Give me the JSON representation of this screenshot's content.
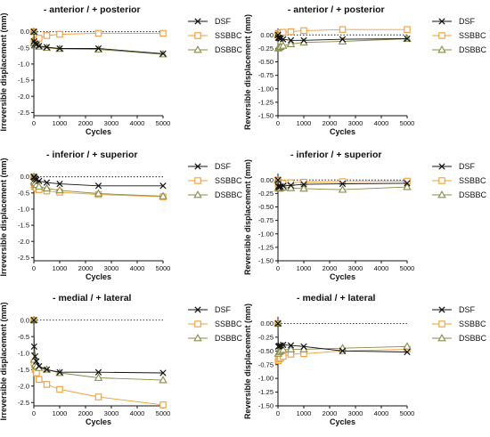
{
  "chart_data": [
    {
      "type": "line",
      "title": "- anterior / + posterior",
      "xlabel": "Cycles",
      "ylabel": "Irreversible displacement (mm)",
      "xlim": [
        0,
        5000
      ],
      "ylim": [
        -2.6,
        0.1
      ],
      "xticks": [
        "0",
        "1000",
        "2000",
        "3000",
        "4000",
        "5000"
      ],
      "yticks": [
        "0.0",
        "-0.5",
        "-1.0",
        "-1.5",
        "-2.0",
        "-2.5"
      ],
      "reference_line": 0,
      "x": [
        0,
        10,
        50,
        100,
        200,
        500,
        1000,
        2500,
        5000
      ],
      "series": [
        {
          "name": "DSF",
          "marker": "x",
          "values": [
            0,
            -0.3,
            -0.37,
            -0.4,
            -0.44,
            -0.48,
            -0.52,
            -0.52,
            -0.68
          ]
        },
        {
          "name": "SSBBC",
          "marker": "square",
          "values": [
            0,
            -0.3,
            -0.28,
            -0.26,
            -0.2,
            -0.12,
            -0.08,
            -0.05,
            -0.05
          ]
        },
        {
          "name": "DSBBC",
          "marker": "triangle",
          "values": [
            0,
            -0.35,
            -0.4,
            -0.42,
            -0.46,
            -0.5,
            -0.53,
            -0.55,
            -0.7
          ]
        }
      ],
      "legend": "right"
    },
    {
      "type": "line",
      "title": "- anterior / + posterior",
      "xlabel": "Cycles",
      "ylabel": "Reversible displacement (mm)",
      "xlim": [
        0,
        5000
      ],
      "ylim": [
        -1.5,
        0.12
      ],
      "xticks": [
        "0",
        "1000",
        "2000",
        "3000",
        "4000",
        "5000"
      ],
      "yticks": [
        "0.00",
        "-0.25",
        "-0.50",
        "-0.75",
        "-1.00",
        "-1.25",
        "-1.50"
      ],
      "reference_line": 0,
      "x": [
        0,
        10,
        50,
        100,
        200,
        500,
        1000,
        2500,
        5000
      ],
      "series": [
        {
          "name": "DSF",
          "marker": "x",
          "values": [
            0,
            -0.05,
            -0.06,
            -0.07,
            -0.08,
            -0.1,
            -0.1,
            -0.08,
            -0.07
          ]
        },
        {
          "name": "SSBBC",
          "marker": "square",
          "values": [
            0,
            0.02,
            0.03,
            0.04,
            0.05,
            0.06,
            0.08,
            0.1,
            0.1
          ]
        },
        {
          "name": "DSBBC",
          "marker": "triangle",
          "values": [
            0,
            -0.25,
            -0.23,
            -0.22,
            -0.2,
            -0.17,
            -0.14,
            -0.12,
            -0.07
          ]
        }
      ],
      "legend": "right"
    },
    {
      "type": "line",
      "title": "- inferior / + superior",
      "xlabel": "Cycles",
      "ylabel": "Irreversible displacement (mm)",
      "xlim": [
        0,
        5000
      ],
      "ylim": [
        -2.6,
        0.1
      ],
      "xticks": [
        "0",
        "1000",
        "2000",
        "3000",
        "4000",
        "5000"
      ],
      "yticks": [
        "0.0",
        "-0.5",
        "-1.0",
        "-1.5",
        "-2.0",
        "-2.5"
      ],
      "reference_line": 0,
      "x": [
        0,
        10,
        50,
        100,
        200,
        500,
        1000,
        2500,
        5000
      ],
      "series": [
        {
          "name": "DSF",
          "marker": "x",
          "values": [
            0,
            -0.02,
            -0.06,
            -0.09,
            -0.13,
            -0.18,
            -0.22,
            -0.28,
            -0.28
          ]
        },
        {
          "name": "SSBBC",
          "marker": "square",
          "values": [
            0,
            -0.28,
            -0.32,
            -0.35,
            -0.4,
            -0.44,
            -0.48,
            -0.55,
            -0.62
          ]
        },
        {
          "name": "DSBBC",
          "marker": "triangle",
          "values": [
            0,
            -0.15,
            -0.2,
            -0.25,
            -0.3,
            -0.36,
            -0.42,
            -0.52,
            -0.6
          ]
        }
      ],
      "legend": "right"
    },
    {
      "type": "line",
      "title": "- inferior / + superior",
      "xlabel": "Cycles",
      "ylabel": "Reversible displacement (mm)",
      "xlim": [
        0,
        5000
      ],
      "ylim": [
        -1.5,
        0.12
      ],
      "xticks": [
        "0",
        "1000",
        "2000",
        "3000",
        "4000",
        "5000"
      ],
      "yticks": [
        "0.00",
        "-0.25",
        "-0.50",
        "-0.75",
        "-1.00",
        "-1.25",
        "-1.50"
      ],
      "reference_line": 0,
      "x": [
        0,
        10,
        50,
        100,
        200,
        500,
        1000,
        2500,
        5000
      ],
      "series": [
        {
          "name": "DSF",
          "marker": "x",
          "values": [
            0,
            -0.12,
            -0.13,
            -0.12,
            -0.11,
            -0.1,
            -0.08,
            -0.07,
            -0.06
          ]
        },
        {
          "name": "SSBBC",
          "marker": "square",
          "values": [
            0,
            -0.08,
            -0.08,
            -0.07,
            -0.06,
            -0.05,
            -0.04,
            -0.03,
            -0.02
          ]
        },
        {
          "name": "DSBBC",
          "marker": "triangle",
          "values": [
            0,
            -0.15,
            -0.16,
            -0.15,
            -0.14,
            -0.15,
            -0.16,
            -0.18,
            -0.13
          ]
        }
      ],
      "legend": "right"
    },
    {
      "type": "line",
      "title": "- medial / + lateral",
      "xlabel": "Cycles",
      "ylabel": "Irreversible displacement (mm)",
      "xlim": [
        0,
        5000
      ],
      "ylim": [
        -2.6,
        0.1
      ],
      "xticks": [
        "0",
        "1000",
        "2000",
        "3000",
        "4000",
        "5000"
      ],
      "yticks": [
        "0.0",
        "-0.5",
        "-1.0",
        "-1.5",
        "-2.0",
        "-2.5"
      ],
      "reference_line": 0,
      "x": [
        0,
        10,
        50,
        100,
        200,
        500,
        1000,
        2500,
        5000
      ],
      "series": [
        {
          "name": "DSF",
          "marker": "x",
          "values": [
            0,
            -0.8,
            -1.1,
            -1.25,
            -1.4,
            -1.5,
            -1.58,
            -1.58,
            -1.6
          ]
        },
        {
          "name": "SSBBC",
          "marker": "square",
          "values": [
            0,
            -1.3,
            -1.5,
            -1.6,
            -1.8,
            -1.95,
            -2.1,
            -2.33,
            -2.57
          ]
        },
        {
          "name": "DSBBC",
          "marker": "triangle",
          "values": [
            0,
            -1.2,
            -1.35,
            -1.4,
            -1.45,
            -1.5,
            -1.6,
            -1.75,
            -1.82
          ]
        }
      ],
      "legend": "right"
    },
    {
      "type": "line",
      "title": "- medial / + lateral",
      "xlabel": "Cycles",
      "ylabel": "Reversible displacement (mm)",
      "xlim": [
        0,
        5000
      ],
      "ylim": [
        -1.5,
        0.12
      ],
      "xticks": [
        "0",
        "1000",
        "2000",
        "3000",
        "4000",
        "5000"
      ],
      "yticks": [
        "0.00",
        "-0.25",
        "-0.50",
        "-0.75",
        "-1.00",
        "-1.25",
        "-1.50"
      ],
      "reference_line": 0,
      "x": [
        0,
        10,
        50,
        100,
        200,
        500,
        1000,
        2500,
        5000
      ],
      "series": [
        {
          "name": "DSF",
          "marker": "x",
          "values": [
            0,
            -0.42,
            -0.41,
            -0.4,
            -0.39,
            -0.4,
            -0.42,
            -0.5,
            -0.52
          ]
        },
        {
          "name": "SSBBC",
          "marker": "square",
          "values": [
            0,
            -0.68,
            -0.65,
            -0.63,
            -0.6,
            -0.56,
            -0.55,
            -0.5,
            -0.47
          ]
        },
        {
          "name": "DSBBC",
          "marker": "triangle",
          "values": [
            0,
            -0.55,
            -0.52,
            -0.5,
            -0.48,
            -0.47,
            -0.47,
            -0.45,
            -0.42
          ]
        }
      ],
      "legend": "right"
    }
  ],
  "series_colors": {
    "DSF": "#111111",
    "SSBBC": "#f39c34",
    "DSBBC": "#8a8a4a"
  },
  "reference_line_color": "#222222"
}
